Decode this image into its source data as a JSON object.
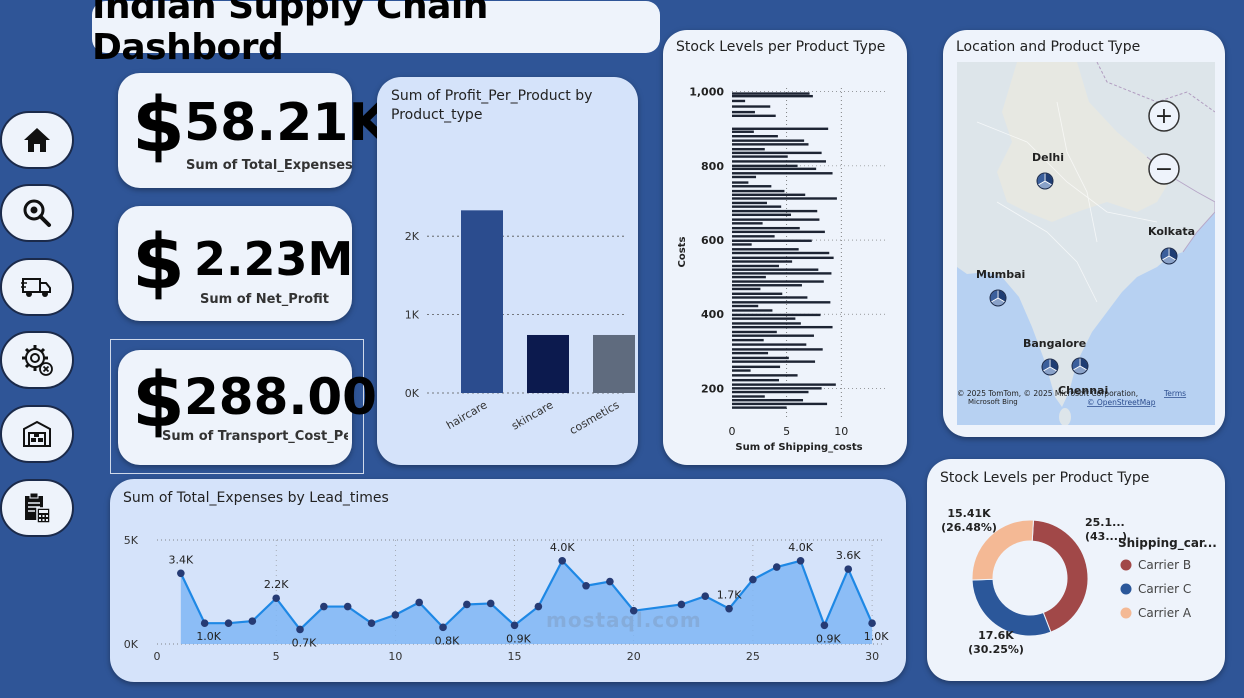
{
  "title": "Indian Supply Chain Dashbord",
  "nav": [
    {
      "name": "home-icon"
    },
    {
      "name": "search-eye-icon"
    },
    {
      "name": "delivery-truck-icon"
    },
    {
      "name": "gear-cancel-icon"
    },
    {
      "name": "warehouse-icon"
    },
    {
      "name": "clipboard-calculator-icon"
    }
  ],
  "kpis": {
    "expenses": {
      "symbol": "$",
      "value": "58.21K",
      "label": "Sum of Total_Expenses"
    },
    "profit": {
      "symbol": "$",
      "value": "2.23M",
      "label": "Sum of  Net_Profit"
    },
    "transport": {
      "symbol": "$",
      "value": "288.00",
      "label": "Sum of Transport_Cost_Per_..."
    }
  },
  "profit_chart_title": "Sum of Profit_Per_Product by Product_type",
  "stock_chart_title": "Stock Levels per Product Type",
  "map": {
    "title": "Location and Product Type",
    "zoom_in": "+",
    "zoom_out": "−",
    "copyright": "© 2025 TomTom, © 2025 Microsoft Corporation,",
    "terms": "Terms",
    "osm": "© OpenStreetMap",
    "bing": "Microsoft Bing",
    "cities": [
      "Delhi",
      "Kolkata",
      "Mumbai",
      "Bangalore",
      "Chennai"
    ]
  },
  "donut_title": "Stock Levels per Product Type",
  "line_chart_title": "Sum of Total_Expenses by Lead_times",
  "watermark": "mostaql.com",
  "chart_data": [
    {
      "type": "bar",
      "title": "Sum of Profit_Per_Product by Product_type",
      "categories": [
        "haircare",
        "skincare",
        "cosmetics"
      ],
      "values": [
        2330,
        740,
        740
      ],
      "colors": [
        "#2b4c8e",
        "#0c1a4e",
        "#5f6b7e"
      ],
      "yticks": [
        0,
        1000,
        2000
      ],
      "ytick_labels": [
        "0K",
        "1K",
        "2K"
      ],
      "ylim": [
        0,
        2500
      ]
    },
    {
      "type": "bar",
      "orientation": "horizontal",
      "title": "Stock Levels per Product Type",
      "xlabel": "Sum of Shipping_costs",
      "ylabel": "Costs",
      "xticks": [
        0,
        5,
        10
      ],
      "yticks": [
        200,
        400,
        600,
        800,
        1000
      ],
      "ytick_labels": [
        "200",
        "400",
        "600",
        "800",
        "1,000"
      ],
      "xlim": [
        0,
        14
      ],
      "ylim": [
        120,
        1010
      ],
      "values": [
        {
          "y": 995,
          "v": 7.1
        },
        {
          "y": 988,
          "v": 7.4
        },
        {
          "y": 975,
          "v": 1.2
        },
        {
          "y": 960,
          "v": 3.5
        },
        {
          "y": 945,
          "v": 2.1
        },
        {
          "y": 935,
          "v": 4.0
        },
        {
          "y": 900,
          "v": 8.8
        },
        {
          "y": 892,
          "v": 2.0
        },
        {
          "y": 880,
          "v": 4.2
        },
        {
          "y": 868,
          "v": 6.6
        },
        {
          "y": 858,
          "v": 7.0
        },
        {
          "y": 845,
          "v": 3.0
        },
        {
          "y": 835,
          "v": 8.2
        },
        {
          "y": 825,
          "v": 5.1
        },
        {
          "y": 812,
          "v": 8.6
        },
        {
          "y": 800,
          "v": 6.0
        },
        {
          "y": 792,
          "v": 7.7
        },
        {
          "y": 780,
          "v": 9.2
        },
        {
          "y": 770,
          "v": 2.2
        },
        {
          "y": 755,
          "v": 1.5
        },
        {
          "y": 745,
          "v": 3.6
        },
        {
          "y": 732,
          "v": 4.8
        },
        {
          "y": 722,
          "v": 6.7
        },
        {
          "y": 712,
          "v": 9.6
        },
        {
          "y": 700,
          "v": 3.2
        },
        {
          "y": 690,
          "v": 4.5
        },
        {
          "y": 678,
          "v": 7.8
        },
        {
          "y": 668,
          "v": 5.4
        },
        {
          "y": 655,
          "v": 8.0
        },
        {
          "y": 645,
          "v": 2.8
        },
        {
          "y": 632,
          "v": 6.2
        },
        {
          "y": 622,
          "v": 8.5
        },
        {
          "y": 610,
          "v": 3.9
        },
        {
          "y": 598,
          "v": 7.3
        },
        {
          "y": 588,
          "v": 1.8
        },
        {
          "y": 575,
          "v": 6.1
        },
        {
          "y": 565,
          "v": 8.9
        },
        {
          "y": 552,
          "v": 9.3
        },
        {
          "y": 542,
          "v": 5.5
        },
        {
          "y": 530,
          "v": 4.3
        },
        {
          "y": 520,
          "v": 7.9
        },
        {
          "y": 510,
          "v": 9.1
        },
        {
          "y": 500,
          "v": 3.1
        },
        {
          "y": 488,
          "v": 8.4
        },
        {
          "y": 478,
          "v": 6.4
        },
        {
          "y": 468,
          "v": 2.6
        },
        {
          "y": 455,
          "v": 4.6
        },
        {
          "y": 445,
          "v": 6.9
        },
        {
          "y": 432,
          "v": 9.0
        },
        {
          "y": 422,
          "v": 2.4
        },
        {
          "y": 410,
          "v": 3.7
        },
        {
          "y": 398,
          "v": 8.1
        },
        {
          "y": 388,
          "v": 5.8
        },
        {
          "y": 375,
          "v": 6.3
        },
        {
          "y": 365,
          "v": 9.2
        },
        {
          "y": 352,
          "v": 4.1
        },
        {
          "y": 342,
          "v": 7.5
        },
        {
          "y": 330,
          "v": 2.9
        },
        {
          "y": 318,
          "v": 6.8
        },
        {
          "y": 305,
          "v": 8.3
        },
        {
          "y": 295,
          "v": 3.3
        },
        {
          "y": 282,
          "v": 5.2
        },
        {
          "y": 272,
          "v": 7.6
        },
        {
          "y": 258,
          "v": 4.4
        },
        {
          "y": 248,
          "v": 1.7
        },
        {
          "y": 235,
          "v": 6.0
        },
        {
          "y": 222,
          "v": 4.3
        },
        {
          "y": 210,
          "v": 9.5
        },
        {
          "y": 200,
          "v": 8.2
        },
        {
          "y": 190,
          "v": 7.0
        },
        {
          "y": 178,
          "v": 3.0
        },
        {
          "y": 168,
          "v": 6.5
        },
        {
          "y": 158,
          "v": 8.7
        },
        {
          "y": 148,
          "v": 5.0
        }
      ]
    },
    {
      "type": "pie",
      "style": "donut",
      "legend_title": "Shipping_car...",
      "legend_position": "right",
      "slices": [
        {
          "name": "Carrier B",
          "value": 25.1,
          "pct": 43.27,
          "label": "25.1...",
          "pct_label": "(43....)",
          "color": "#a14848"
        },
        {
          "name": "Carrier C",
          "value": 17.6,
          "pct": 30.25,
          "label": "17.6K",
          "pct_label": "(30.25%)",
          "color": "#2b579a"
        },
        {
          "name": "Carrier A",
          "value": 15.41,
          "pct": 26.48,
          "label": "15.41K",
          "pct_label": "(26.48%)",
          "color": "#f4b995"
        }
      ]
    },
    {
      "type": "area",
      "title": "Sum of Total_Expenses by Lead_times",
      "xticks": [
        0,
        5,
        10,
        15,
        20,
        25,
        30
      ],
      "yticks": [
        0,
        5000
      ],
      "ytick_labels": [
        "0K",
        "5K"
      ],
      "xlim": [
        0,
        30.5
      ],
      "ylim": [
        0,
        5000
      ],
      "points": [
        {
          "x": 1,
          "y": 3400,
          "label": "3.4K"
        },
        {
          "x": 2,
          "y": 1000,
          "label": "1.0K"
        },
        {
          "x": 3,
          "y": 1000
        },
        {
          "x": 4,
          "y": 1100
        },
        {
          "x": 5,
          "y": 2200,
          "label": "2.2K"
        },
        {
          "x": 6,
          "y": 700,
          "label": "0.7K"
        },
        {
          "x": 7,
          "y": 1800
        },
        {
          "x": 8,
          "y": 1800
        },
        {
          "x": 9,
          "y": 1000
        },
        {
          "x": 10,
          "y": 1400
        },
        {
          "x": 11,
          "y": 2000
        },
        {
          "x": 12,
          "y": 800,
          "label": "0.8K"
        },
        {
          "x": 13,
          "y": 1900
        },
        {
          "x": 14,
          "y": 1950
        },
        {
          "x": 15,
          "y": 900,
          "label": "0.9K"
        },
        {
          "x": 16,
          "y": 1800
        },
        {
          "x": 17,
          "y": 4000,
          "label": "4.0K"
        },
        {
          "x": 18,
          "y": 2800
        },
        {
          "x": 19,
          "y": 3000
        },
        {
          "x": 20,
          "y": 1600
        },
        {
          "x": 22,
          "y": 1900
        },
        {
          "x": 23,
          "y": 2300
        },
        {
          "x": 24,
          "y": 1700,
          "label": "1.7K"
        },
        {
          "x": 25,
          "y": 3100
        },
        {
          "x": 26,
          "y": 3700
        },
        {
          "x": 27,
          "y": 4000,
          "label": "4.0K"
        },
        {
          "x": 28,
          "y": 900,
          "label": "0.9K"
        },
        {
          "x": 29,
          "y": 3600,
          "label": "3.6K"
        },
        {
          "x": 30,
          "y": 1000,
          "label": "1.0K"
        }
      ]
    }
  ]
}
